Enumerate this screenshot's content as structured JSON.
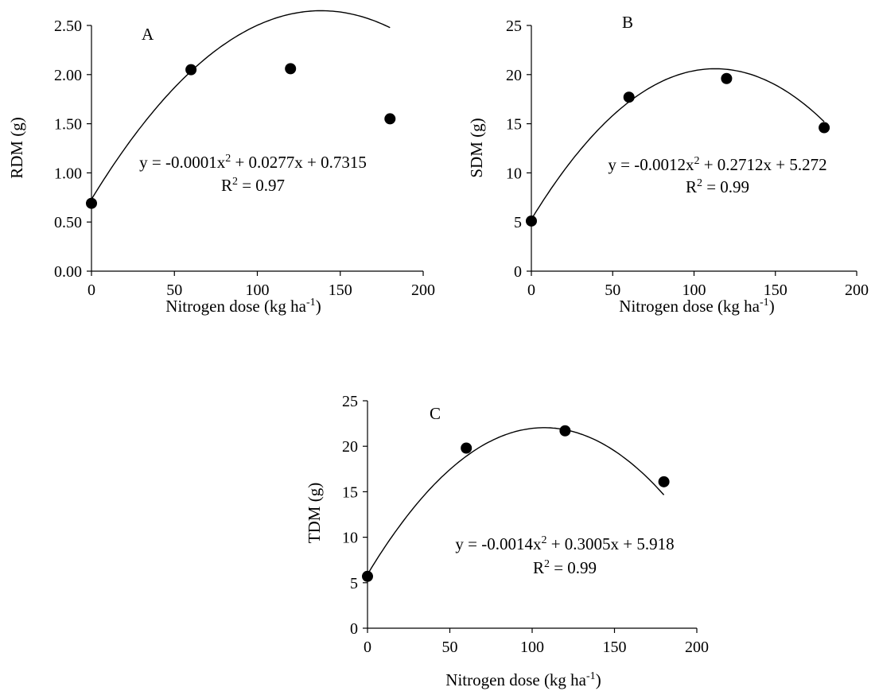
{
  "chart_data": [
    {
      "type": "scatter",
      "panel_label": "A",
      "xlabel": "Nitrogen dose (kg ha",
      "xlabel_sup": "-1",
      "xlabel_end": ")",
      "ylabel": "RDM (g)",
      "x": [
        0,
        60,
        120,
        180
      ],
      "y": [
        0.69,
        2.05,
        2.06,
        1.55
      ],
      "xlim": [
        0,
        200
      ],
      "ylim": [
        0,
        2.5
      ],
      "xticks": [
        0,
        50,
        100,
        150,
        200
      ],
      "yticks": [
        0,
        0.5,
        1.0,
        1.5,
        2.0,
        2.5
      ],
      "ytick_labels": [
        "0.00",
        "0.50",
        "1.00",
        "1.50",
        "2.00",
        "2.50"
      ],
      "fit": {
        "a": -0.0001,
        "b": 0.0277,
        "c": 0.7315
      },
      "equation": "y = -0.0001x",
      "equation_tail": " + 0.0277x + 0.7315",
      "r2_prefix": "R",
      "r2_tail": " = 0.97",
      "grid": false
    },
    {
      "type": "scatter",
      "panel_label": "B",
      "xlabel": "Nitrogen dose (kg ha",
      "xlabel_sup": "-1",
      "xlabel_end": ")",
      "ylabel": "SDM (g)",
      "x": [
        0,
        60,
        120,
        180
      ],
      "y": [
        5.1,
        17.7,
        19.6,
        14.6
      ],
      "xlim": [
        0,
        200
      ],
      "ylim": [
        0,
        25
      ],
      "xticks": [
        0,
        50,
        100,
        150,
        200
      ],
      "yticks": [
        0,
        5,
        10,
        15,
        20,
        25
      ],
      "ytick_labels": [
        "0",
        "5",
        "10",
        "15",
        "20",
        "25"
      ],
      "fit": {
        "a": -0.0012,
        "b": 0.2712,
        "c": 5.272
      },
      "equation": "y = -0.0012x",
      "equation_tail": " + 0.2712x + 5.272",
      "r2_prefix": "R",
      "r2_tail": " = 0.99",
      "grid": false
    },
    {
      "type": "scatter",
      "panel_label": "C",
      "xlabel": "Nitrogen dose (kg ha",
      "xlabel_sup": "-1",
      "xlabel_end": ")",
      "ylabel": "TDM (g)",
      "x": [
        0,
        60,
        120,
        180
      ],
      "y": [
        5.7,
        19.8,
        21.7,
        16.1
      ],
      "xlim": [
        0,
        200
      ],
      "ylim": [
        0,
        25
      ],
      "xticks": [
        0,
        50,
        100,
        150,
        200
      ],
      "yticks": [
        0,
        5,
        10,
        15,
        20,
        25
      ],
      "ytick_labels": [
        "0",
        "5",
        "10",
        "15",
        "20",
        "25"
      ],
      "fit": {
        "a": -0.0014,
        "b": 0.3005,
        "c": 5.918
      },
      "equation": "y = -0.0014x",
      "equation_tail": " + 0.3005x + 5.918",
      "r2_prefix": "R",
      "r2_tail": " = 0.99",
      "grid": false
    }
  ]
}
